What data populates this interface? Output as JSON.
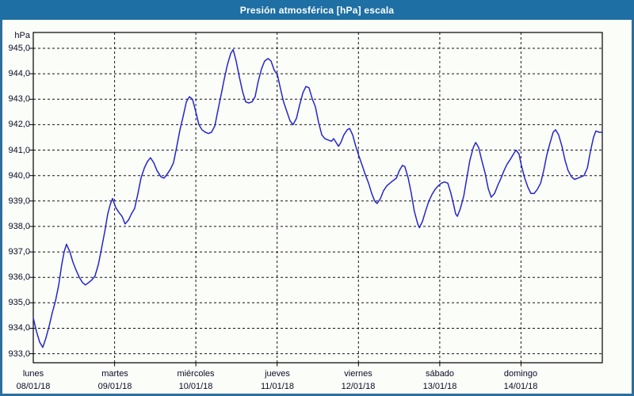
{
  "window": {
    "title": "Presión atmosférica [hPa] escala"
  },
  "colors": {
    "titlebar_bg": "#1E6FA3",
    "window_border": "#2D6E9D",
    "plot_background": "#FBFDF9",
    "line_color": "#2626C9",
    "grid_color": "#141414",
    "frame_color": "#000000",
    "label_color": "#0B0B26",
    "title_text_color": "#FFFFFF"
  },
  "chart_data": {
    "type": "line",
    "title": "Presión atmosférica [hPa] escala",
    "ylabel": "hPa",
    "xlabel": "",
    "ylim": [
      933,
      945
    ],
    "ytick_step": 1,
    "grid": "dashed",
    "legend": "none",
    "yticks": [
      {
        "value": 945,
        "label": "945,0"
      },
      {
        "value": 944,
        "label": "944,0"
      },
      {
        "value": 943,
        "label": "943,0"
      },
      {
        "value": 942,
        "label": "942,0"
      },
      {
        "value": 941,
        "label": "941,0"
      },
      {
        "value": 940,
        "label": "940,0"
      },
      {
        "value": 939,
        "label": "939,0"
      },
      {
        "value": 938,
        "label": "938,0"
      },
      {
        "value": 937,
        "label": "937,0"
      },
      {
        "value": 936,
        "label": "936,0"
      },
      {
        "value": 935,
        "label": "935,0"
      },
      {
        "value": 934,
        "label": "934,0"
      },
      {
        "value": 933,
        "label": "933,0"
      }
    ],
    "x_axis": {
      "unit": "hours_from_start",
      "range_hours": [
        0,
        168
      ],
      "day_boundaries_hours": [
        24,
        48,
        72,
        96,
        120,
        144
      ],
      "days": [
        {
          "name": "lunes",
          "date": "08/01/18",
          "start_hour": 0
        },
        {
          "name": "martes",
          "date": "09/01/18",
          "start_hour": 24
        },
        {
          "name": "miércoles",
          "date": "10/01/18",
          "start_hour": 48
        },
        {
          "name": "jueves",
          "date": "11/01/18",
          "start_hour": 72
        },
        {
          "name": "viernes",
          "date": "12/01/18",
          "start_hour": 96
        },
        {
          "name": "sábado",
          "date": "13/01/18",
          "start_hour": 120
        },
        {
          "name": "domingo",
          "date": "14/01/18",
          "start_hour": 144
        }
      ]
    },
    "series": [
      {
        "name": "presión atmosférica",
        "unit": "hPa",
        "points": [
          [
            0,
            934.4
          ],
          [
            0.9,
            933.9
          ],
          [
            1.9,
            933.45
          ],
          [
            2.8,
            933.25
          ],
          [
            3.7,
            933.6
          ],
          [
            4.7,
            934.1
          ],
          [
            5.6,
            934.6
          ],
          [
            6.6,
            935.1
          ],
          [
            7.5,
            935.7
          ],
          [
            8.4,
            936.5
          ],
          [
            9.1,
            937
          ],
          [
            9.8,
            937.3
          ],
          [
            10.8,
            937
          ],
          [
            11.7,
            936.6
          ],
          [
            12.6,
            936.3
          ],
          [
            13.6,
            936
          ],
          [
            14.5,
            935.8
          ],
          [
            15.4,
            935.7
          ],
          [
            16.4,
            935.8
          ],
          [
            17.3,
            935.9
          ],
          [
            18.2,
            936.05
          ],
          [
            19.2,
            936.5
          ],
          [
            20.1,
            937.1
          ],
          [
            21.1,
            937.8
          ],
          [
            22,
            938.5
          ],
          [
            22.7,
            938.85
          ],
          [
            23.4,
            939.1
          ],
          [
            24.3,
            938.75
          ],
          [
            25.3,
            938.55
          ],
          [
            26.2,
            938.4
          ],
          [
            27.1,
            938.1
          ],
          [
            28.1,
            938.25
          ],
          [
            29,
            938.5
          ],
          [
            29.9,
            938.7
          ],
          [
            30.9,
            939.3
          ],
          [
            31.8,
            939.9
          ],
          [
            32.8,
            940.3
          ],
          [
            33.7,
            940.55
          ],
          [
            34.6,
            940.7
          ],
          [
            35.6,
            940.5
          ],
          [
            36.5,
            940.2
          ],
          [
            37.7,
            939.95
          ],
          [
            38.6,
            939.9
          ],
          [
            39.5,
            940.05
          ],
          [
            40.5,
            940.25
          ],
          [
            41.4,
            940.5
          ],
          [
            42.3,
            941.1
          ],
          [
            43.3,
            941.8
          ],
          [
            44.2,
            942.3
          ],
          [
            45.2,
            942.9
          ],
          [
            46.1,
            943.1
          ],
          [
            47,
            943
          ],
          [
            48,
            942.5
          ],
          [
            48.9,
            942
          ],
          [
            49.8,
            941.8
          ],
          [
            50.8,
            941.7
          ],
          [
            51.7,
            941.65
          ],
          [
            52.6,
            941.7
          ],
          [
            53.6,
            941.95
          ],
          [
            54.5,
            942.55
          ],
          [
            55.5,
            943.2
          ],
          [
            56.4,
            943.8
          ],
          [
            57.3,
            944.35
          ],
          [
            58.3,
            944.8
          ],
          [
            59,
            944.95
          ],
          [
            59.9,
            944.5
          ],
          [
            60.8,
            943.9
          ],
          [
            61.8,
            943.3
          ],
          [
            62.7,
            942.9
          ],
          [
            63.6,
            942.85
          ],
          [
            64.6,
            942.9
          ],
          [
            65.5,
            943.1
          ],
          [
            66.4,
            943.7
          ],
          [
            67.4,
            944.2
          ],
          [
            68.3,
            944.5
          ],
          [
            69.3,
            944.6
          ],
          [
            70.2,
            944.5
          ],
          [
            71.1,
            944.15
          ],
          [
            72.1,
            943.95
          ],
          [
            73,
            943.4
          ],
          [
            73.9,
            942.9
          ],
          [
            74.9,
            942.5
          ],
          [
            75.8,
            942.15
          ],
          [
            76.7,
            942
          ],
          [
            77.7,
            942.25
          ],
          [
            78.6,
            942.75
          ],
          [
            79.6,
            943.25
          ],
          [
            80.5,
            943.5
          ],
          [
            81.4,
            943.45
          ],
          [
            82.4,
            943
          ],
          [
            83.3,
            942.7
          ],
          [
            84.2,
            942.1
          ],
          [
            85.2,
            941.6
          ],
          [
            86.1,
            941.45
          ],
          [
            87,
            941.4
          ],
          [
            88,
            941.35
          ],
          [
            88.7,
            941.45
          ],
          [
            89.4,
            941.3
          ],
          [
            90.1,
            941.15
          ],
          [
            90.8,
            941.3
          ],
          [
            91.7,
            941.6
          ],
          [
            92.7,
            941.8
          ],
          [
            93.4,
            941.85
          ],
          [
            94.3,
            941.6
          ],
          [
            95.2,
            941.15
          ],
          [
            96.2,
            940.75
          ],
          [
            97.1,
            940.4
          ],
          [
            98,
            940.05
          ],
          [
            99,
            939.7
          ],
          [
            99.9,
            939.3
          ],
          [
            100.8,
            939
          ],
          [
            101.5,
            938.9
          ],
          [
            102.5,
            939.1
          ],
          [
            103.4,
            939.4
          ],
          [
            104.4,
            939.6
          ],
          [
            105.3,
            939.7
          ],
          [
            106.2,
            939.8
          ],
          [
            107.2,
            939.9
          ],
          [
            108.1,
            940.2
          ],
          [
            109,
            940.4
          ],
          [
            109.7,
            940.35
          ],
          [
            110.7,
            939.9
          ],
          [
            111.6,
            939.3
          ],
          [
            112.5,
            938.6
          ],
          [
            113.5,
            938.1
          ],
          [
            114,
            937.95
          ],
          [
            114.9,
            938.2
          ],
          [
            115.8,
            938.6
          ],
          [
            116.8,
            939
          ],
          [
            117.7,
            939.25
          ],
          [
            118.6,
            939.45
          ],
          [
            119.6,
            939.6
          ],
          [
            120.5,
            939.7
          ],
          [
            121.4,
            939.75
          ],
          [
            122.4,
            939.7
          ],
          [
            123.3,
            939.3
          ],
          [
            124.2,
            938.8
          ],
          [
            124.7,
            938.5
          ],
          [
            125.2,
            938.4
          ],
          [
            126.1,
            938.7
          ],
          [
            127.1,
            939.2
          ],
          [
            128,
            939.9
          ],
          [
            128.9,
            940.6
          ],
          [
            129.9,
            941.1
          ],
          [
            130.6,
            941.3
          ],
          [
            131.5,
            941.1
          ],
          [
            132.4,
            940.6
          ],
          [
            133.4,
            940.1
          ],
          [
            134.3,
            939.5
          ],
          [
            135.2,
            939.15
          ],
          [
            136.2,
            939.3
          ],
          [
            137.1,
            939.6
          ],
          [
            138.1,
            939.9
          ],
          [
            139,
            940.2
          ],
          [
            139.9,
            940.45
          ],
          [
            140.9,
            940.65
          ],
          [
            141.8,
            940.85
          ],
          [
            142.5,
            941
          ],
          [
            143.4,
            940.85
          ],
          [
            144.1,
            940.4
          ],
          [
            145.1,
            939.9
          ],
          [
            146,
            939.55
          ],
          [
            146.9,
            939.3
          ],
          [
            147.9,
            939.3
          ],
          [
            148.8,
            939.45
          ],
          [
            149.8,
            939.7
          ],
          [
            150.7,
            940.2
          ],
          [
            151.6,
            940.8
          ],
          [
            152.6,
            941.3
          ],
          [
            153.5,
            941.7
          ],
          [
            154.2,
            941.8
          ],
          [
            155.1,
            941.6
          ],
          [
            156.1,
            941.15
          ],
          [
            157,
            940.6
          ],
          [
            157.9,
            940.2
          ],
          [
            158.9,
            939.95
          ],
          [
            159.8,
            939.85
          ],
          [
            160.8,
            939.9
          ],
          [
            161.7,
            939.95
          ],
          [
            162.6,
            940
          ],
          [
            163.6,
            940.3
          ],
          [
            164.5,
            940.95
          ],
          [
            165.4,
            941.5
          ],
          [
            166.1,
            941.75
          ],
          [
            167.1,
            941.7
          ],
          [
            167.8,
            941.7
          ]
        ]
      }
    ]
  }
}
